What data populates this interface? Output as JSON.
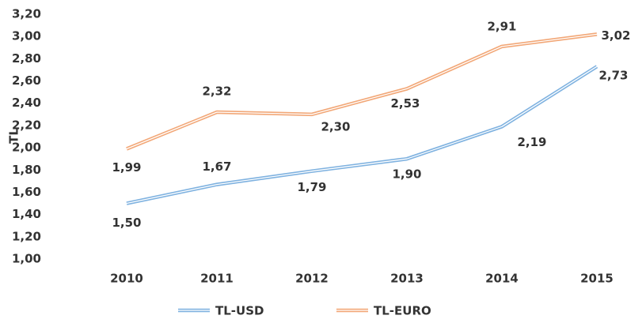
{
  "chart_data": {
    "type": "line",
    "y_label": "TL",
    "categories": [
      "2010",
      "2011",
      "2012",
      "2013",
      "2014",
      "2015"
    ],
    "series": [
      {
        "name": "TL-USD",
        "color": "#7fb2e0",
        "values": [
          1.5,
          1.67,
          1.79,
          1.9,
          2.19,
          2.73
        ],
        "value_labels": [
          "1,50",
          "1,67",
          "1,79",
          "1,90",
          "2,19",
          "2,73"
        ]
      },
      {
        "name": "TL-EURO",
        "color": "#f2a777",
        "values": [
          1.99,
          2.32,
          2.3,
          2.53,
          2.91,
          3.02
        ],
        "value_labels": [
          "1,99",
          "2,32",
          "2,30",
          "2,53",
          "2,91",
          "3,02"
        ]
      }
    ],
    "ylim": [
      1.0,
      3.2
    ],
    "yticks": [
      {
        "value": 1.0,
        "label": "1,00"
      },
      {
        "value": 1.2,
        "label": "1,20"
      },
      {
        "value": 1.4,
        "label": "1,40"
      },
      {
        "value": 1.6,
        "label": "1,60"
      },
      {
        "value": 1.8,
        "label": "1,80"
      },
      {
        "value": 2.0,
        "label": "2,00"
      },
      {
        "value": 2.2,
        "label": "2,20"
      },
      {
        "value": 2.4,
        "label": "2,40"
      },
      {
        "value": 2.6,
        "label": "2,60"
      },
      {
        "value": 2.8,
        "label": "2,80"
      },
      {
        "value": 3.0,
        "label": "3,00"
      },
      {
        "value": 3.2,
        "label": "3,20"
      }
    ],
    "legend": "bottom"
  }
}
